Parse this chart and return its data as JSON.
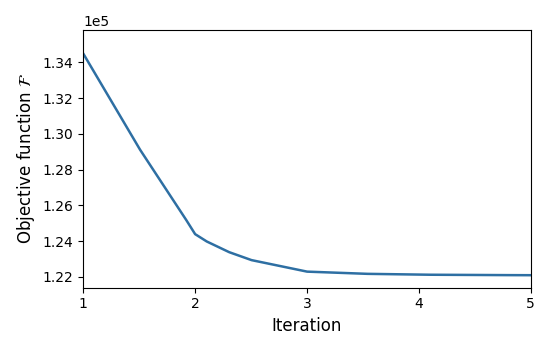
{
  "key_x": [
    1,
    1.5,
    1.9,
    2.0,
    2.1,
    2.3,
    2.5,
    3.0,
    3.5,
    4.0,
    4.5,
    5.0
  ],
  "key_y": [
    134500,
    129200,
    125400,
    124400,
    124000,
    123400,
    122950,
    122300,
    122180,
    122130,
    122110,
    122100
  ],
  "xlabel": "Iteration",
  "ylabel": "Objective function $\\mathcal{F}$",
  "line_color": "#2e6fa3",
  "line_width": 1.8,
  "xlim": [
    1,
    5
  ],
  "ylim": [
    121400,
    135800
  ],
  "xticks": [
    1,
    2,
    3,
    4,
    5
  ],
  "yticks": [
    1.22,
    1.24,
    1.26,
    1.28,
    1.3,
    1.32,
    1.34
  ],
  "figsize": [
    5.5,
    3.5
  ],
  "dpi": 100
}
